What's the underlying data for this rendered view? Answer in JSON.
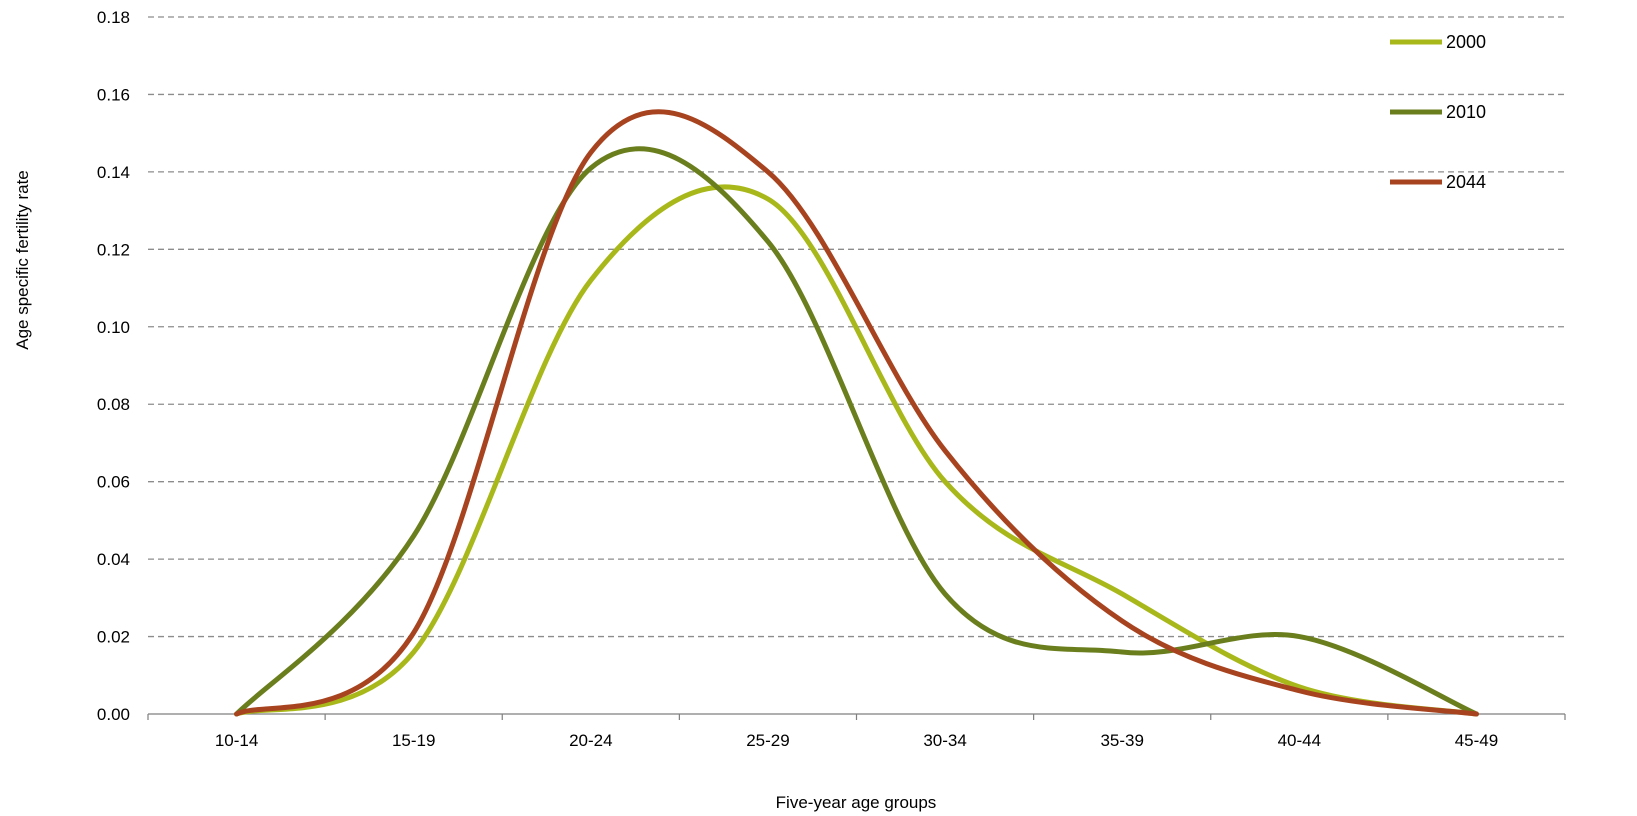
{
  "chart_data": {
    "type": "line",
    "title": "",
    "xlabel": "Five-year age groups",
    "ylabel": "Age specific fertility rate",
    "categories": [
      "10-14",
      "15-19",
      "20-24",
      "25-29",
      "30-34",
      "35-39",
      "40-44",
      "45-49"
    ],
    "ylim": [
      0,
      0.18
    ],
    "yticks": [
      "0.00",
      "0.02",
      "0.04",
      "0.06",
      "0.08",
      "0.10",
      "0.12",
      "0.14",
      "0.16",
      "0.18"
    ],
    "grid": "horizontal-dashed",
    "legend_position": "top-right",
    "smooth": true,
    "series": [
      {
        "name": "2000",
        "color": "#a8b81a",
        "values": [
          0.0,
          0.016,
          0.112,
          0.133,
          0.06,
          0.031,
          0.007,
          0.0
        ]
      },
      {
        "name": "2010",
        "color": "#6a7e1e",
        "values": [
          0.0,
          0.046,
          0.141,
          0.122,
          0.031,
          0.016,
          0.02,
          0.0
        ]
      },
      {
        "name": "2044",
        "color": "#a8431f",
        "values": [
          0.0,
          0.021,
          0.145,
          0.14,
          0.068,
          0.024,
          0.006,
          0.0
        ]
      }
    ]
  }
}
